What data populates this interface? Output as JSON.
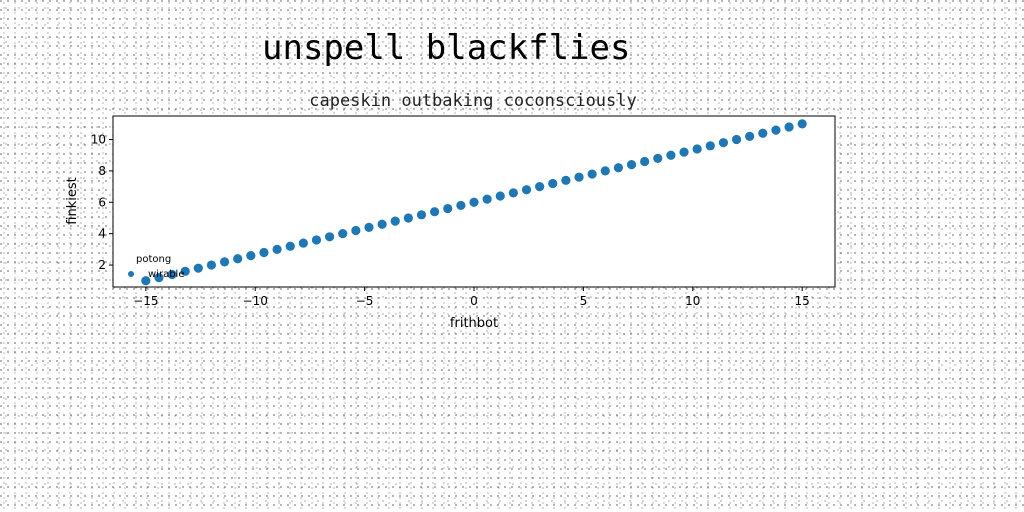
{
  "page_title": "unspell blackflies",
  "chart_data": {
    "type": "scatter",
    "title": "capeskin outbaking coconsciously",
    "xlabel": "frithbot",
    "ylabel": "finkiest",
    "xlim": [
      -16.5,
      16.5
    ],
    "ylim": [
      0.6,
      11.5
    ],
    "xticks": [
      -15,
      -10,
      -5,
      0,
      5,
      10,
      15
    ],
    "xtick_labels": [
      "−15",
      "−10",
      "−5",
      "0",
      "5",
      "10",
      "15"
    ],
    "yticks": [
      2,
      4,
      6,
      8,
      10
    ],
    "ytick_labels": [
      "2",
      "4",
      "6",
      "8",
      "10"
    ],
    "grid": false,
    "legend": {
      "title": "potong",
      "placement": "lower-left"
    },
    "color": "#1f77b4",
    "series": [
      {
        "name": "wirable",
        "x": [
          -15.0,
          -14.4,
          -13.8,
          -13.2,
          -12.6,
          -12.0,
          -11.4,
          -10.8,
          -10.2,
          -9.6,
          -9.0,
          -8.4,
          -7.8,
          -7.2,
          -6.6,
          -6.0,
          -5.4,
          -4.8,
          -4.2,
          -3.6,
          -3.0,
          -2.4,
          -1.8,
          -1.2,
          -0.6,
          0.0,
          0.6,
          1.2,
          1.8,
          2.4,
          3.0,
          3.6,
          4.2,
          4.8,
          5.4,
          6.0,
          6.6,
          7.2,
          7.8,
          8.4,
          9.0,
          9.6,
          10.2,
          10.8,
          11.4,
          12.0,
          12.6,
          13.2,
          13.8,
          14.4,
          15.0
        ],
        "y": [
          1.0,
          1.2,
          1.4,
          1.6,
          1.8,
          2.0,
          2.2,
          2.4,
          2.6,
          2.8,
          3.0,
          3.2,
          3.4,
          3.6,
          3.8,
          4.0,
          4.2,
          4.4,
          4.6,
          4.8,
          5.0,
          5.2,
          5.4,
          5.6,
          5.8,
          6.0,
          6.2,
          6.4,
          6.6,
          6.8,
          7.0,
          7.2,
          7.4,
          7.6,
          7.8,
          8.0,
          8.2,
          8.4,
          8.6,
          8.8,
          9.0,
          9.2,
          9.4,
          9.6,
          9.8,
          10.0,
          10.2,
          10.4,
          10.6,
          10.8,
          11.0
        ]
      }
    ]
  }
}
